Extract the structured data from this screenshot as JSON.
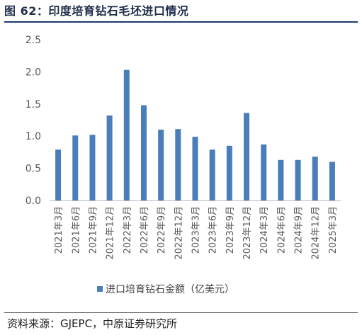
{
  "header": {
    "title": "图 62：印度培育钻石毛坯进口情况"
  },
  "footer": {
    "source": "资料来源：GJEPC，中原证券研究所"
  },
  "colors": {
    "bar": "#4a7ebb",
    "axis": "#bfbfbf",
    "title_rule": "#1f3a6b"
  },
  "chart_data": {
    "type": "bar",
    "title": "",
    "xlabel": "",
    "ylabel": "",
    "ylim": [
      0,
      2.5
    ],
    "yticks": [
      "0.0",
      "0.5",
      "1.0",
      "1.5",
      "2.0",
      "2.5"
    ],
    "grid": false,
    "legend_position": "bottom",
    "categories": [
      "2021年3月",
      "2021年6月",
      "2021年9月",
      "2021年12月",
      "2022年3月",
      "2022年6月",
      "2022年9月",
      "2022年12月",
      "2023年3月",
      "2023年6月",
      "2023年9月",
      "2023年12月",
      "2024年3月",
      "2024年6月",
      "2024年9月",
      "2024年12月",
      "2025年3月"
    ],
    "series": [
      {
        "name": "进口培育钻石金额（亿美元）",
        "values": [
          0.79,
          1.01,
          1.02,
          1.32,
          2.03,
          1.48,
          1.1,
          1.11,
          0.99,
          0.79,
          0.85,
          1.36,
          0.87,
          0.63,
          0.63,
          0.68,
          0.6
        ]
      }
    ]
  }
}
